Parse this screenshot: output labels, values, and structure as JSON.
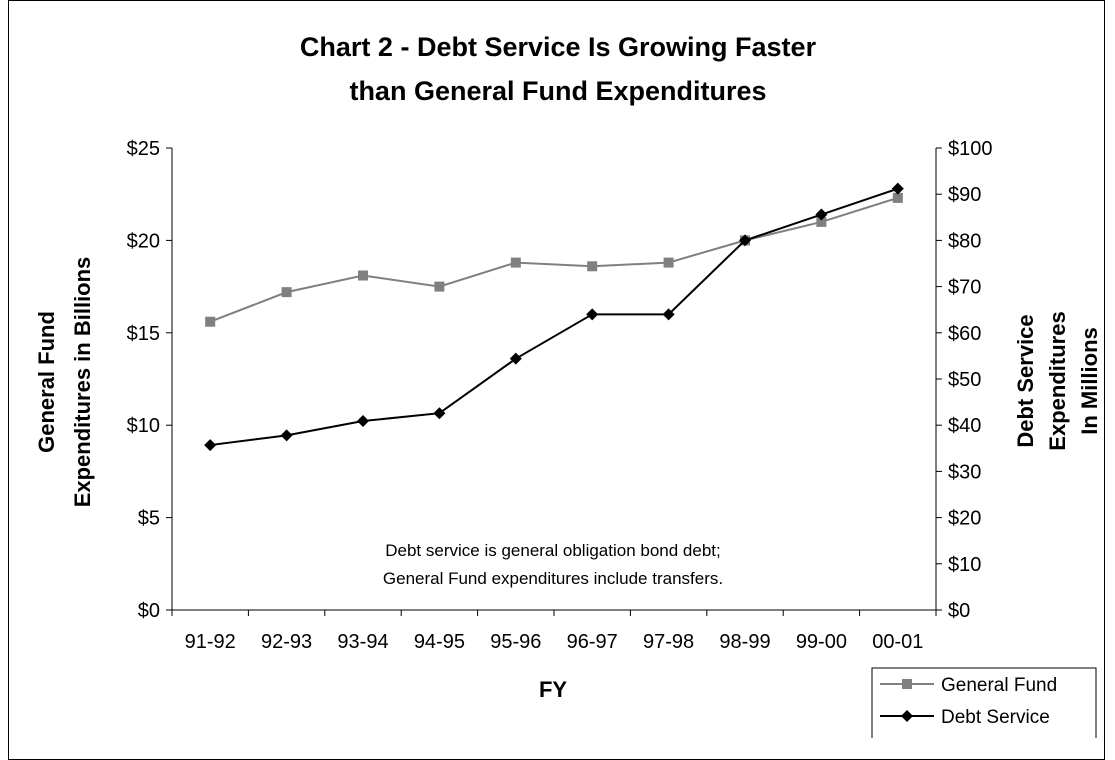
{
  "chart_data": {
    "type": "line",
    "title_line1": "Chart 2 - Debt Service Is Growing Faster",
    "title_line2": "than General Fund Expenditures",
    "xlabel": "FY",
    "ylabel_left_line1": "General Fund",
    "ylabel_left_line2": "Expenditures in Billions",
    "ylabel_right_line1": "Debt Service",
    "ylabel_right_line2": "Expenditures",
    "ylabel_right_line3": "In Millions",
    "categories": [
      "91-92",
      "92-93",
      "93-94",
      "94-95",
      "95-96",
      "96-97",
      "97-98",
      "98-99",
      "99-00",
      "00-01"
    ],
    "left_axis": {
      "min": 0,
      "max": 25,
      "step": 5,
      "tick_labels": [
        "$0",
        "$5",
        "$10",
        "$15",
        "$20",
        "$25"
      ]
    },
    "right_axis": {
      "min": 0,
      "max": 100,
      "step": 10,
      "tick_labels": [
        "$0",
        "$10",
        "$20",
        "$30",
        "$40",
        "$50",
        "$60",
        "$70",
        "$80",
        "$90",
        "$100"
      ]
    },
    "series": [
      {
        "name": "General Fund",
        "axis": "left",
        "color": "#808080",
        "marker": "square",
        "values": [
          15.6,
          17.2,
          18.1,
          17.5,
          18.8,
          18.6,
          18.8,
          20.0,
          21.0,
          22.3
        ]
      },
      {
        "name": "Debt Service",
        "axis": "right",
        "color": "#000000",
        "marker": "diamond",
        "values": [
          35.7,
          37.8,
          40.9,
          42.6,
          54.4,
          64.0,
          64.0,
          80.0,
          85.6,
          91.2
        ]
      }
    ],
    "annotation_line1": "Debt service is general obligation bond debt;",
    "annotation_line2": "General Fund expenditures include transfers.",
    "legend_position": "bottom-right",
    "grid": false
  }
}
